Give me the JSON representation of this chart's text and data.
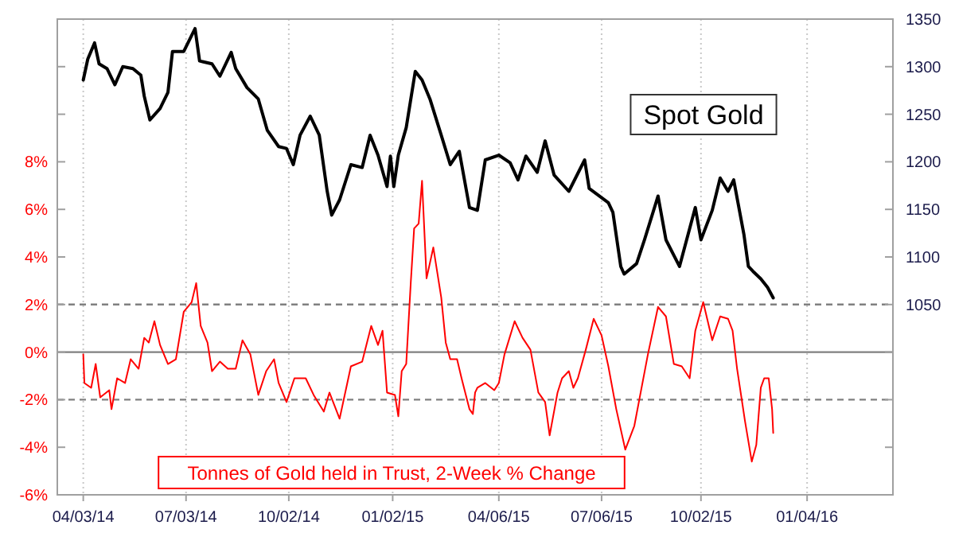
{
  "chart_data": {
    "type": "line",
    "xlim": [
      "2014-03-11",
      "2016-03-20"
    ],
    "xticks": [
      {
        "value": "2014-04-03",
        "label": "04/03/14"
      },
      {
        "value": "2014-07-03",
        "label": "07/03/14"
      },
      {
        "value": "2014-10-02",
        "label": "10/02/14"
      },
      {
        "value": "2015-01-02",
        "label": "01/02/15"
      },
      {
        "value": "2015-04-06",
        "label": "04/06/15"
      },
      {
        "value": "2015-07-06",
        "label": "07/06/15"
      },
      {
        "value": "2015-10-02",
        "label": "10/02/15"
      },
      {
        "value": "2016-01-04",
        "label": "01/04/16"
      }
    ],
    "ylim": [
      -6,
      14
    ],
    "yticks": [
      {
        "value": -6,
        "label": "-6%"
      },
      {
        "value": -4,
        "label": "-4%"
      },
      {
        "value": -2,
        "label": "-2%"
      },
      {
        "value": 0,
        "label": "0%"
      },
      {
        "value": 2,
        "label": "2%"
      },
      {
        "value": 4,
        "label": "4%"
      },
      {
        "value": 6,
        "label": "6%"
      },
      {
        "value": 8,
        "label": "8%"
      },
      {
        "value": 10,
        "label": null
      },
      {
        "value": 12,
        "label": null
      }
    ],
    "y2lim": [
      850,
      1350
    ],
    "y2ticks": [
      {
        "value": 900,
        "label": null
      },
      {
        "value": 950,
        "label": null
      },
      {
        "value": 1000,
        "label": null
      },
      1050,
      1100,
      1150,
      1200,
      1250,
      1300,
      1350
    ],
    "grid": "x",
    "ref_lines": [
      {
        "axis": "y",
        "value": 0,
        "color": "#808080",
        "line_style": "solid"
      },
      {
        "axis": "y",
        "value": 2,
        "color": "#808080",
        "line_style": "dashed"
      },
      {
        "axis": "y",
        "value": -2,
        "color": "#808080",
        "line_style": "dashed"
      }
    ],
    "series": [
      {
        "name": "Spot Gold",
        "color": "#000000",
        "axis": "y2",
        "x": [
          "2014-04-03",
          "2014-04-07",
          "2014-04-13",
          "2014-04-17",
          "2014-04-24",
          "2014-05-01",
          "2014-05-08",
          "2014-05-17",
          "2014-05-24",
          "2014-05-27",
          "2014-06-01",
          "2014-06-10",
          "2014-06-17",
          "2014-06-21",
          "2014-07-01",
          "2014-07-11",
          "2014-07-15",
          "2014-07-26",
          "2014-08-02",
          "2014-08-12",
          "2014-08-16",
          "2014-08-26",
          "2014-09-05",
          "2014-09-13",
          "2014-09-23",
          "2014-09-30",
          "2014-10-06",
          "2014-10-12",
          "2014-10-21",
          "2014-10-29",
          "2014-11-05",
          "2014-11-09",
          "2014-11-16",
          "2014-11-26",
          "2014-12-06",
          "2014-12-13",
          "2014-12-20",
          "2014-12-28",
          "2014-12-31",
          "2015-01-03",
          "2015-01-07",
          "2015-01-14",
          "2015-01-22",
          "2015-01-28",
          "2015-02-04",
          "2015-02-14",
          "2015-02-22",
          "2015-03-02",
          "2015-03-11",
          "2015-03-18",
          "2015-03-25",
          "2015-04-06",
          "2015-04-16",
          "2015-04-23",
          "2015-04-30",
          "2015-05-10",
          "2015-05-17",
          "2015-05-25",
          "2015-06-07",
          "2015-06-21",
          "2015-06-25",
          "2015-07-12",
          "2015-07-16",
          "2015-07-23",
          "2015-07-26",
          "2015-08-06",
          "2015-08-13",
          "2015-08-25",
          "2015-09-01",
          "2015-09-13",
          "2015-09-27",
          "2015-10-02",
          "2015-10-12",
          "2015-10-19",
          "2015-10-26",
          "2015-10-31",
          "2015-11-09",
          "2015-11-13",
          "2015-11-17",
          "2015-11-24",
          "2015-11-30",
          "2015-12-05"
        ],
        "values": [
          1286,
          1308,
          1325,
          1303,
          1298,
          1281,
          1300,
          1298,
          1291,
          1269,
          1244,
          1256,
          1273,
          1316,
          1316,
          1340,
          1306,
          1303,
          1290,
          1315,
          1298,
          1278,
          1266,
          1233,
          1216,
          1214,
          1197,
          1228,
          1248,
          1228,
          1169,
          1144,
          1160,
          1197,
          1194,
          1228,
          1207,
          1174,
          1206,
          1174,
          1207,
          1236,
          1295,
          1286,
          1266,
          1228,
          1197,
          1211,
          1152,
          1149,
          1202,
          1207,
          1199,
          1181,
          1206,
          1189,
          1222,
          1186,
          1169,
          1202,
          1172,
          1157,
          1147,
          1090,
          1082,
          1093,
          1118,
          1164,
          1118,
          1090,
          1152,
          1118,
          1149,
          1183,
          1169,
          1181,
          1124,
          1090,
          1085,
          1077,
          1068,
          1057
        ]
      },
      {
        "name": "Tonnes of Gold held in Trust, 2-Week % Change",
        "color": "#ff0000",
        "x": [
          "2014-04-03",
          "2014-04-04",
          "2014-04-10",
          "2014-04-14",
          "2014-04-18",
          "2014-04-26",
          "2014-04-28",
          "2014-05-03",
          "2014-05-10",
          "2014-05-15",
          "2014-05-22",
          "2014-05-27",
          "2014-05-31",
          "2014-06-05",
          "2014-06-10",
          "2014-06-17",
          "2014-06-24",
          "2014-07-01",
          "2014-07-08",
          "2014-07-12",
          "2014-07-16",
          "2014-07-22",
          "2014-07-26",
          "2014-08-02",
          "2014-08-09",
          "2014-08-16",
          "2014-08-22",
          "2014-08-29",
          "2014-09-05",
          "2014-09-12",
          "2014-09-19",
          "2014-09-23",
          "2014-09-30",
          "2014-10-07",
          "2014-10-17",
          "2014-10-24",
          "2014-11-02",
          "2014-11-07",
          "2014-11-16",
          "2014-11-26",
          "2014-12-06",
          "2014-12-14",
          "2014-12-20",
          "2014-12-24",
          "2014-12-28",
          "2015-01-04",
          "2015-01-07",
          "2015-01-10",
          "2015-01-14",
          "2015-01-18",
          "2015-01-21",
          "2015-01-25",
          "2015-01-28",
          "2015-02-01",
          "2015-02-07",
          "2015-02-14",
          "2015-02-18",
          "2015-02-22",
          "2015-02-28",
          "2015-03-04",
          "2015-03-11",
          "2015-03-14",
          "2015-03-16",
          "2015-03-18",
          "2015-03-25",
          "2015-04-02",
          "2015-04-06",
          "2015-04-11",
          "2015-04-20",
          "2015-04-27",
          "2015-05-04",
          "2015-05-11",
          "2015-05-17",
          "2015-05-21",
          "2015-05-28",
          "2015-06-01",
          "2015-06-07",
          "2015-06-11",
          "2015-06-15",
          "2015-06-22",
          "2015-06-29",
          "2015-07-06",
          "2015-07-12",
          "2015-07-19",
          "2015-07-27",
          "2015-08-04",
          "2015-08-16",
          "2015-08-25",
          "2015-09-01",
          "2015-09-08",
          "2015-09-15",
          "2015-09-22",
          "2015-09-27",
          "2015-10-04",
          "2015-10-12",
          "2015-10-19",
          "2015-10-26",
          "2015-10-30",
          "2015-11-03",
          "2015-11-10",
          "2015-11-16",
          "2015-11-20",
          "2015-11-24",
          "2015-11-27",
          "2015-12-01",
          "2015-12-04",
          "2015-12-05"
        ],
        "values": [
          -0.1,
          -1.3,
          -1.5,
          -0.5,
          -1.9,
          -1.6,
          -2.4,
          -1.1,
          -1.3,
          -0.3,
          -0.7,
          0.6,
          0.4,
          1.3,
          0.3,
          -0.5,
          -0.3,
          1.7,
          2.1,
          2.9,
          1.1,
          0.4,
          -0.8,
          -0.4,
          -0.7,
          -0.7,
          0.5,
          -0.1,
          -1.8,
          -0.8,
          -0.3,
          -1.3,
          -2.1,
          -1.1,
          -1.1,
          -1.8,
          -2.5,
          -1.7,
          -2.8,
          -0.6,
          -0.4,
          1.1,
          0.3,
          0.9,
          -1.7,
          -1.8,
          -2.7,
          -0.8,
          -0.5,
          2.9,
          5.2,
          5.4,
          7.2,
          3.1,
          4.4,
          2.3,
          0.4,
          -0.3,
          -0.3,
          -1.1,
          -2.4,
          -2.6,
          -1.7,
          -1.5,
          -1.3,
          -1.6,
          -1.3,
          -0.1,
          1.3,
          0.6,
          0.1,
          -1.7,
          -2.1,
          -3.5,
          -1.7,
          -1.1,
          -0.8,
          -1.5,
          -1.1,
          0.1,
          1.4,
          0.7,
          -0.6,
          -2.4,
          -4.1,
          -3.1,
          -0.1,
          1.9,
          1.5,
          -0.5,
          -0.6,
          -1.1,
          0.9,
          2.1,
          0.5,
          1.5,
          1.4,
          0.9,
          -0.7,
          -2.9,
          -4.6,
          -3.9,
          -1.5,
          -1.1,
          -1.1,
          -2.4,
          -3.4
        ]
      }
    ]
  }
}
